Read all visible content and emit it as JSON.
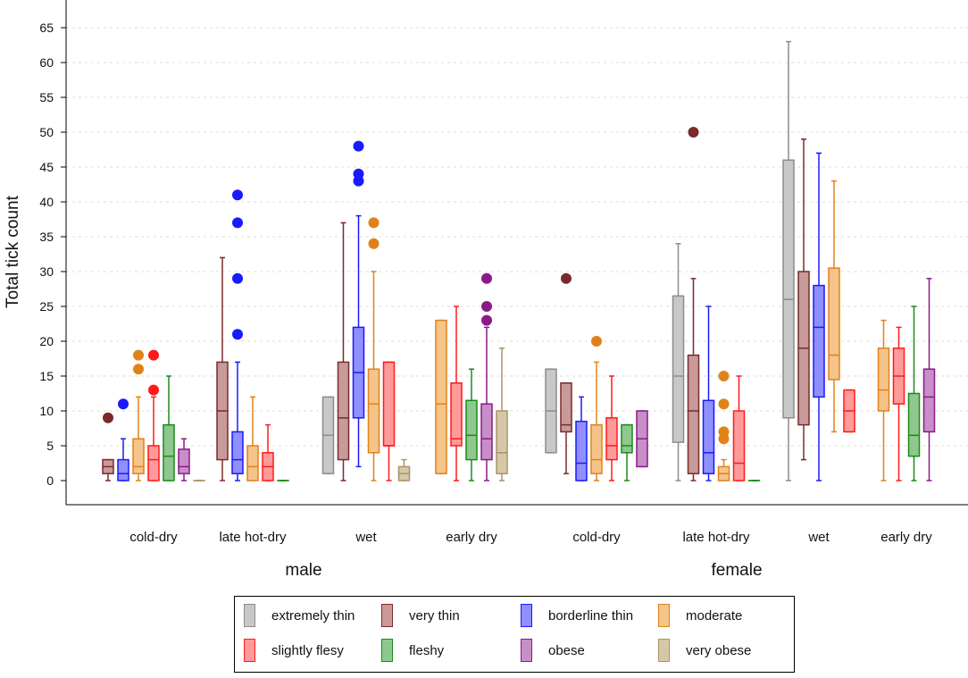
{
  "chart_data": {
    "type": "boxplot",
    "title": "",
    "xlabel": "",
    "ylabel": "Total tick count",
    "ylim": [
      -3,
      68
    ],
    "yticks": [
      0,
      5,
      10,
      15,
      20,
      25,
      30,
      35,
      40,
      45,
      50,
      55,
      60,
      65
    ],
    "grid": true,
    "legend_position": "bottom",
    "groups": [
      {
        "name": "male",
        "seasons": [
          "cold-dry",
          "late hot-dry",
          "wet",
          "early dry"
        ]
      },
      {
        "name": "female",
        "seasons": [
          "cold-dry",
          "late hot-dry",
          "wet",
          "early dry"
        ]
      }
    ],
    "categories": [
      {
        "name": "extremely thin",
        "color": "#8c8c8c",
        "fill": "#c8c8c8"
      },
      {
        "name": "very thin",
        "color": "#7a2a2a",
        "fill": "#c89a9a"
      },
      {
        "name": "borderline thin",
        "color": "#1a1aff",
        "fill": "#8f8fff"
      },
      {
        "name": "moderate",
        "color": "#e0821a",
        "fill": "#f5c48a"
      },
      {
        "name": "slightly flesy",
        "color": "#ff1a1a",
        "fill": "#ff9a9a"
      },
      {
        "name": "fleshy",
        "color": "#1a8a1a",
        "fill": "#8ec88e"
      },
      {
        "name": "obese",
        "color": "#8a1a8a",
        "fill": "#c88ec8"
      },
      {
        "name": "very obese",
        "color": "#a89468",
        "fill": "#d6c8a6"
      }
    ],
    "boxes": [
      {
        "group": "male",
        "season": "cold-dry",
        "category": "very thin",
        "min": 0,
        "q1": 1,
        "median": 2,
        "q3": 3,
        "max": 3,
        "outliers": [
          9
        ]
      },
      {
        "group": "male",
        "season": "cold-dry",
        "category": "borderline thin",
        "min": 0,
        "q1": 0,
        "median": 1,
        "q3": 3,
        "max": 6,
        "outliers": [
          11
        ]
      },
      {
        "group": "male",
        "season": "cold-dry",
        "category": "moderate",
        "min": 0,
        "q1": 1,
        "median": 2,
        "q3": 6,
        "max": 12,
        "outliers": [
          16,
          18
        ]
      },
      {
        "group": "male",
        "season": "cold-dry",
        "category": "slightly flesy",
        "min": 0,
        "q1": 0,
        "median": 3,
        "q3": 5,
        "max": 12,
        "outliers": [
          13,
          18
        ]
      },
      {
        "group": "male",
        "season": "cold-dry",
        "category": "fleshy",
        "min": 0,
        "q1": 0,
        "median": 3.5,
        "q3": 8,
        "max": 15,
        "outliers": []
      },
      {
        "group": "male",
        "season": "cold-dry",
        "category": "obese",
        "min": 0,
        "q1": 1,
        "median": 2,
        "q3": 4.5,
        "max": 6,
        "outliers": []
      },
      {
        "group": "male",
        "season": "cold-dry",
        "category": "very obese",
        "min": 0,
        "q1": 0,
        "median": 0,
        "q3": 0,
        "max": 0,
        "outliers": []
      },
      {
        "group": "male",
        "season": "late hot-dry",
        "category": "very thin",
        "min": 0,
        "q1": 3,
        "median": 10,
        "q3": 17,
        "max": 32,
        "outliers": []
      },
      {
        "group": "male",
        "season": "late hot-dry",
        "category": "borderline thin",
        "min": 0,
        "q1": 1,
        "median": 3,
        "q3": 7,
        "max": 17,
        "outliers": [
          21,
          29,
          37,
          41
        ]
      },
      {
        "group": "male",
        "season": "late hot-dry",
        "category": "moderate",
        "min": 0,
        "q1": 0,
        "median": 2,
        "q3": 5,
        "max": 12,
        "outliers": []
      },
      {
        "group": "male",
        "season": "late hot-dry",
        "category": "slightly flesy",
        "min": 0,
        "q1": 0,
        "median": 2,
        "q3": 4,
        "max": 8,
        "outliers": []
      },
      {
        "group": "male",
        "season": "late hot-dry",
        "category": "fleshy",
        "min": 0,
        "q1": 0,
        "median": 0,
        "q3": 0,
        "max": 0,
        "outliers": []
      },
      {
        "group": "male",
        "season": "wet",
        "category": "extremely thin",
        "min": 1,
        "q1": 1,
        "median": 6.5,
        "q3": 12,
        "max": 12,
        "outliers": []
      },
      {
        "group": "male",
        "season": "wet",
        "category": "very thin",
        "min": 0,
        "q1": 3,
        "median": 9,
        "q3": 17,
        "max": 37,
        "outliers": []
      },
      {
        "group": "male",
        "season": "wet",
        "category": "borderline thin",
        "min": 2,
        "q1": 9,
        "median": 15.5,
        "q3": 22,
        "max": 38,
        "outliers": [
          43,
          44,
          48
        ]
      },
      {
        "group": "male",
        "season": "wet",
        "category": "moderate",
        "min": 0,
        "q1": 4,
        "median": 11,
        "q3": 16,
        "max": 30,
        "outliers": [
          34,
          37
        ]
      },
      {
        "group": "male",
        "season": "wet",
        "category": "slightly flesy",
        "min": 0,
        "q1": 5,
        "median": 5,
        "q3": 17,
        "max": 17,
        "outliers": []
      },
      {
        "group": "male",
        "season": "wet",
        "category": "very obese",
        "min": 0,
        "q1": 0,
        "median": 1,
        "q3": 2,
        "max": 3,
        "outliers": []
      },
      {
        "group": "male",
        "season": "early dry",
        "category": "moderate",
        "min": 1,
        "q1": 1,
        "median": 11,
        "q3": 23,
        "max": 23,
        "outliers": []
      },
      {
        "group": "male",
        "season": "early dry",
        "category": "slightly flesy",
        "min": 0,
        "q1": 5,
        "median": 6,
        "q3": 14,
        "max": 25,
        "outliers": []
      },
      {
        "group": "male",
        "season": "early dry",
        "category": "fleshy",
        "min": 0,
        "q1": 3,
        "median": 6.5,
        "q3": 11.5,
        "max": 16,
        "outliers": []
      },
      {
        "group": "male",
        "season": "early dry",
        "category": "obese",
        "min": 0,
        "q1": 3,
        "median": 6,
        "q3": 11,
        "max": 22,
        "outliers": [
          23,
          25,
          29
        ]
      },
      {
        "group": "male",
        "season": "early dry",
        "category": "very obese",
        "min": 0,
        "q1": 1,
        "median": 4,
        "q3": 10,
        "max": 19,
        "outliers": []
      },
      {
        "group": "female",
        "season": "cold-dry",
        "category": "extremely thin",
        "min": 4,
        "q1": 4,
        "median": 10,
        "q3": 16,
        "max": 16,
        "outliers": []
      },
      {
        "group": "female",
        "season": "cold-dry",
        "category": "very thin",
        "min": 1,
        "q1": 7,
        "median": 8,
        "q3": 14,
        "max": 14,
        "outliers": [
          29
        ]
      },
      {
        "group": "female",
        "season": "cold-dry",
        "category": "borderline thin",
        "min": 0,
        "q1": 0,
        "median": 2.5,
        "q3": 8.5,
        "max": 12,
        "outliers": []
      },
      {
        "group": "female",
        "season": "cold-dry",
        "category": "moderate",
        "min": 0,
        "q1": 1,
        "median": 3,
        "q3": 8,
        "max": 17,
        "outliers": [
          20
        ]
      },
      {
        "group": "female",
        "season": "cold-dry",
        "category": "slightly flesy",
        "min": 0,
        "q1": 3,
        "median": 5,
        "q3": 9,
        "max": 15,
        "outliers": []
      },
      {
        "group": "female",
        "season": "cold-dry",
        "category": "fleshy",
        "min": 0,
        "q1": 4,
        "median": 5,
        "q3": 8,
        "max": 8,
        "outliers": []
      },
      {
        "group": "female",
        "season": "cold-dry",
        "category": "obese",
        "min": 2,
        "q1": 2,
        "median": 6,
        "q3": 10,
        "max": 10,
        "outliers": []
      },
      {
        "group": "female",
        "season": "late hot-dry",
        "category": "extremely thin",
        "min": 0,
        "q1": 5.5,
        "median": 15,
        "q3": 26.5,
        "max": 34,
        "outliers": []
      },
      {
        "group": "female",
        "season": "late hot-dry",
        "category": "very thin",
        "min": 0,
        "q1": 1,
        "median": 10,
        "q3": 18,
        "max": 29,
        "outliers": [
          50
        ]
      },
      {
        "group": "female",
        "season": "late hot-dry",
        "category": "borderline thin",
        "min": 0,
        "q1": 1,
        "median": 4,
        "q3": 11.5,
        "max": 25,
        "outliers": []
      },
      {
        "group": "female",
        "season": "late hot-dry",
        "category": "moderate",
        "min": 0,
        "q1": 0,
        "median": 1,
        "q3": 2,
        "max": 3,
        "outliers": [
          6,
          7,
          11,
          15
        ]
      },
      {
        "group": "female",
        "season": "late hot-dry",
        "category": "slightly flesy",
        "min": 0,
        "q1": 0,
        "median": 2.5,
        "q3": 10,
        "max": 15,
        "outliers": []
      },
      {
        "group": "female",
        "season": "late hot-dry",
        "category": "fleshy",
        "min": 0,
        "q1": 0,
        "median": 0,
        "q3": 0,
        "max": 0,
        "outliers": []
      },
      {
        "group": "female",
        "season": "wet",
        "category": "extremely thin",
        "min": 0,
        "q1": 9,
        "median": 26,
        "q3": 46,
        "max": 63,
        "outliers": []
      },
      {
        "group": "female",
        "season": "wet",
        "category": "very thin",
        "min": 3,
        "q1": 8,
        "median": 19,
        "q3": 30,
        "max": 49,
        "outliers": []
      },
      {
        "group": "female",
        "season": "wet",
        "category": "borderline thin",
        "min": 0,
        "q1": 12,
        "median": 22,
        "q3": 28,
        "max": 47,
        "outliers": []
      },
      {
        "group": "female",
        "season": "wet",
        "category": "moderate",
        "min": 7,
        "q1": 14.5,
        "median": 18,
        "q3": 30.5,
        "max": 43,
        "outliers": []
      },
      {
        "group": "female",
        "season": "wet",
        "category": "slightly flesy",
        "min": 7,
        "q1": 7,
        "median": 10,
        "q3": 13,
        "max": 13,
        "outliers": []
      },
      {
        "group": "female",
        "season": "early dry",
        "category": "moderate",
        "min": 0,
        "q1": 10,
        "median": 13,
        "q3": 19,
        "max": 23,
        "outliers": []
      },
      {
        "group": "female",
        "season": "early dry",
        "category": "slightly flesy",
        "min": 0,
        "q1": 11,
        "median": 15,
        "q3": 19,
        "max": 22,
        "outliers": []
      },
      {
        "group": "female",
        "season": "early dry",
        "category": "fleshy",
        "min": 0,
        "q1": 3.5,
        "median": 6.5,
        "q3": 12.5,
        "max": 25,
        "outliers": []
      },
      {
        "group": "female",
        "season": "early dry",
        "category": "obese",
        "min": 0,
        "q1": 7,
        "median": 12,
        "q3": 16,
        "max": 29,
        "outliers": []
      }
    ]
  }
}
